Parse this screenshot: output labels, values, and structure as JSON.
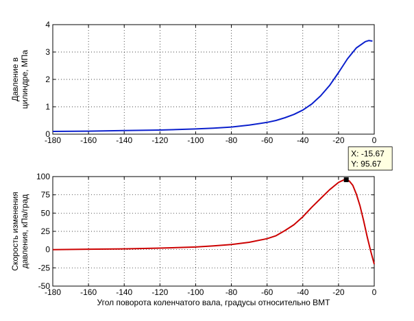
{
  "colors": {
    "pressure_line": "#0a1fcc",
    "rate_line": "#cc0000",
    "background": "#ffffff",
    "tooltip_bg": "#ffffe1"
  },
  "chart_data": [
    {
      "type": "line",
      "title": "",
      "xlabel": "",
      "ylabel_lines": [
        "Давление в",
        "цилиндре, МПа"
      ],
      "xlim": [
        -180,
        0
      ],
      "ylim": [
        0,
        4
      ],
      "xticks": [
        -180,
        -160,
        -140,
        -120,
        -100,
        -80,
        -60,
        -40,
        -20,
        0
      ],
      "yticks": [
        0,
        1,
        2,
        3,
        4
      ],
      "grid": true,
      "series": [
        {
          "x": [
            -180,
            -160,
            -140,
            -120,
            -100,
            -90,
            -80,
            -70,
            -60,
            -55,
            -50,
            -45,
            -40,
            -35,
            -30,
            -25,
            -20,
            -15,
            -10,
            -5,
            -3,
            -1
          ],
          "y": [
            0.1,
            0.11,
            0.13,
            0.15,
            0.19,
            0.22,
            0.26,
            0.33,
            0.43,
            0.5,
            0.6,
            0.72,
            0.88,
            1.1,
            1.4,
            1.78,
            2.25,
            2.75,
            3.15,
            3.38,
            3.42,
            3.4
          ]
        }
      ]
    },
    {
      "type": "line",
      "title": "",
      "xlabel": "Угол поворота коленчатого вала, градусы относительно ВМТ",
      "ylabel_lines": [
        "Скорость изменения",
        "давления, кПа/град"
      ],
      "xlim": [
        -180,
        0
      ],
      "ylim": [
        -50,
        100
      ],
      "xticks": [
        -180,
        -160,
        -140,
        -120,
        -100,
        -80,
        -60,
        -40,
        -20,
        0
      ],
      "yticks": [
        -50,
        -25,
        0,
        25,
        50,
        75,
        100
      ],
      "grid": true,
      "series": [
        {
          "x": [
            -180,
            -160,
            -140,
            -120,
            -100,
            -90,
            -80,
            -70,
            -60,
            -55,
            -50,
            -45,
            -40,
            -35,
            -30,
            -25,
            -20,
            -17,
            -15.67,
            -14,
            -12,
            -10,
            -8,
            -6,
            -4,
            -2,
            0
          ],
          "y": [
            0,
            0.5,
            1,
            2,
            3.5,
            5,
            7,
            10,
            15,
            19,
            26,
            34,
            45,
            58,
            70,
            82,
            92,
            95.5,
            95.67,
            94,
            88,
            76,
            60,
            40,
            18,
            -2,
            -20
          ]
        }
      ],
      "datatip": {
        "x": -15.67,
        "y": 95.67,
        "text_x": "X: -15.67",
        "text_y": "Y: 95.67"
      }
    }
  ]
}
